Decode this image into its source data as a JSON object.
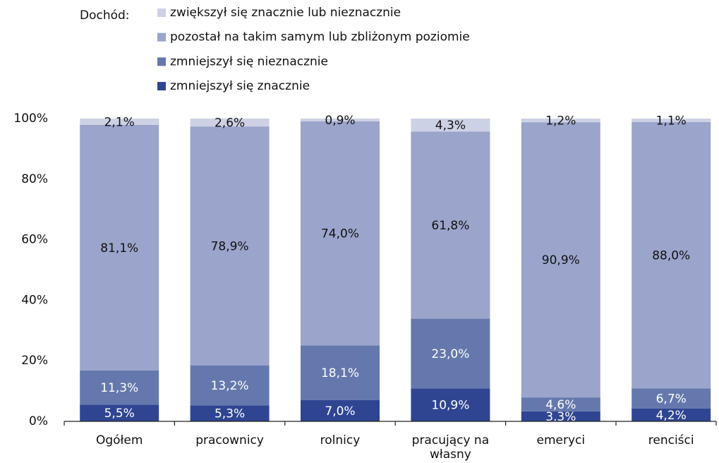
{
  "chart_data": {
    "type": "stacked_bar",
    "legend_title": "Dochód:",
    "categories": [
      "Ogółem",
      "pracownicy",
      "rolnicy",
      "pracujący na własny rachunek",
      "emeryci",
      "renciści"
    ],
    "series": [
      {
        "name": "zmniejszył się znacznie",
        "color": "#2f4592",
        "label_color": "#ffffff",
        "values": [
          5.5,
          5.3,
          7.0,
          10.9,
          3.3,
          4.2
        ],
        "value_labels": [
          "5,5%",
          "5,3%",
          "7,0%",
          "10,9%",
          "3,3%",
          "4,2%"
        ]
      },
      {
        "name": "zmniejszył się nieznacznie",
        "color": "#6578ad",
        "label_color": "#ffffff",
        "values": [
          11.3,
          13.2,
          18.1,
          23.0,
          4.6,
          6.7
        ],
        "value_labels": [
          "11,3%",
          "13,2%",
          "18,1%",
          "23,0%",
          "4,6%",
          "6,7%"
        ]
      },
      {
        "name": "pozostał na takim samym lub zbliżonym poziomie",
        "color": "#9ba4cb",
        "label_color": "#111111",
        "values": [
          81.1,
          78.9,
          74.0,
          61.8,
          90.9,
          88.0
        ],
        "value_labels": [
          "81,1%",
          "78,9%",
          "74,0%",
          "61,8%",
          "90,9%",
          "88,0%"
        ]
      },
      {
        "name": "zwiększył się znacznie lub nieznacznie",
        "color": "#cdd1e5",
        "label_color": "#111111",
        "values": [
          2.1,
          2.6,
          0.9,
          4.3,
          1.2,
          1.1
        ],
        "value_labels": [
          "2,1%",
          "2,6%",
          "0,9%",
          "4,3%",
          "1,2%",
          "1,1%"
        ]
      }
    ],
    "ylim": [
      0,
      100
    ],
    "yticks": [
      {
        "value": 0,
        "label": "0%"
      },
      {
        "value": 20,
        "label": "20%"
      },
      {
        "value": 40,
        "label": "40%"
      },
      {
        "value": 60,
        "label": "60%"
      },
      {
        "value": 80,
        "label": "80%"
      },
      {
        "value": 100,
        "label": "100%"
      }
    ],
    "grid": false
  }
}
